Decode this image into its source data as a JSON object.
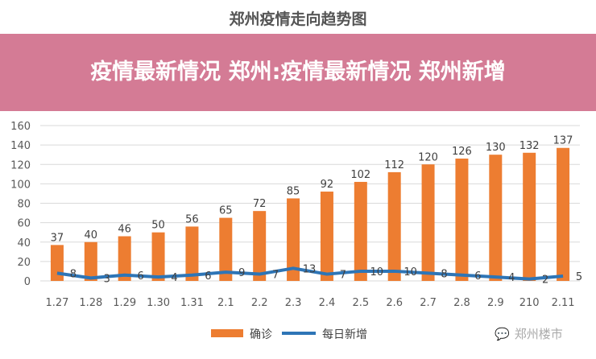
{
  "chart_data": {
    "type": "bar+line",
    "title": "郑州疫情走向趋势图",
    "categories": [
      "1.27",
      "1.28",
      "1.29",
      "1.30",
      "1.31",
      "2.1",
      "2.2",
      "2.3",
      "2.4",
      "2.5",
      "2.6",
      "2.7",
      "2.8",
      "2.9",
      "210",
      "2.11"
    ],
    "series": [
      {
        "name": "确诊",
        "type": "bar",
        "color": "#ED7D31",
        "values": [
          37,
          40,
          46,
          50,
          56,
          65,
          72,
          85,
          92,
          102,
          112,
          120,
          126,
          130,
          132,
          137
        ]
      },
      {
        "name": "每日新增",
        "type": "line",
        "color": "#2E75B6",
        "values": [
          8,
          3,
          6,
          4,
          6,
          9,
          7,
          13,
          7,
          10,
          10,
          8,
          6,
          4,
          2,
          5
        ]
      }
    ],
    "ylim": [
      0,
      160
    ],
    "yticks": [
      0,
      20,
      40,
      60,
      80,
      100,
      120,
      140,
      160
    ],
    "grid": true,
    "legend": "bottom"
  },
  "overlay": {
    "headline": "疫情最新情况 郑州:疫情最新情况 郑州新增"
  },
  "watermark": {
    "icon": "wechat-icon",
    "text": "郑州楼市"
  }
}
